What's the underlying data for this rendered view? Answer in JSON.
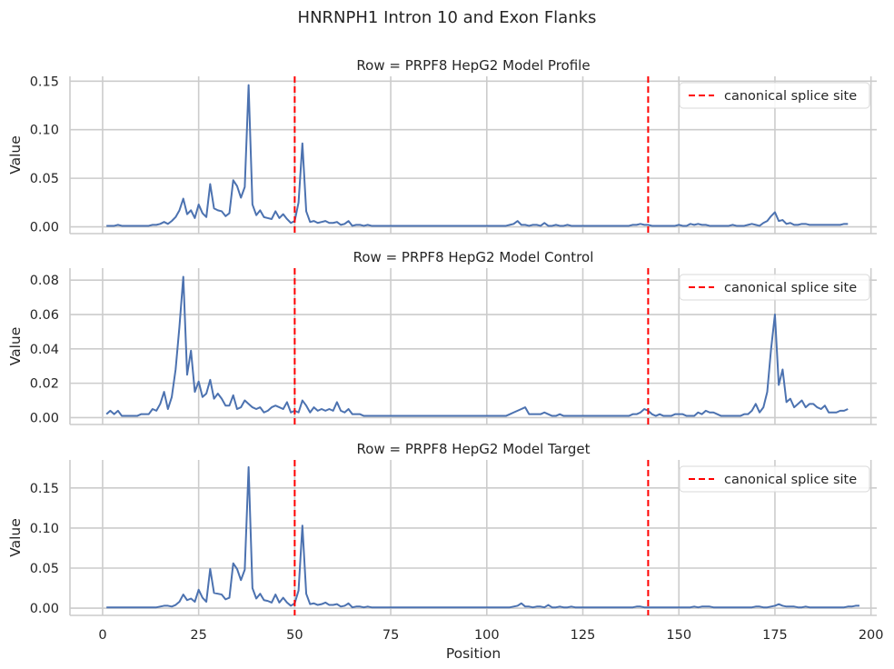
{
  "figure": {
    "suptitle": "HNRNPH1 Intron 10 and Exon Flanks",
    "xlabel": "Position",
    "ylabel": "Value"
  },
  "chart_data": [
    {
      "type": "line",
      "title": "Row = PRPF8 HepG2 Model Profile",
      "xlabel": "",
      "ylabel": "Value",
      "xlim": [
        -8.5,
        201.5
      ],
      "ylim": [
        -0.007,
        0.155
      ],
      "xticks": [
        0,
        25,
        50,
        75,
        100,
        125,
        150,
        175,
        200
      ],
      "yticks": [
        0.0,
        0.05,
        0.1,
        0.15
      ],
      "ytick_labels": [
        "0.00",
        "0.05",
        "0.10",
        "0.15"
      ],
      "grid": true,
      "legend": "top-right",
      "series": [
        {
          "color": "#4c72b0",
          "x_start": 1,
          "values": [
            0.001,
            0.001,
            0.001,
            0.002,
            0.001,
            0.001,
            0.001,
            0.001,
            0.001,
            0.001,
            0.001,
            0.001,
            0.002,
            0.002,
            0.003,
            0.005,
            0.003,
            0.006,
            0.01,
            0.017,
            0.029,
            0.013,
            0.017,
            0.009,
            0.023,
            0.014,
            0.01,
            0.044,
            0.019,
            0.017,
            0.016,
            0.011,
            0.014,
            0.048,
            0.042,
            0.03,
            0.041,
            0.146,
            0.023,
            0.012,
            0.017,
            0.01,
            0.009,
            0.008,
            0.016,
            0.009,
            0.013,
            0.008,
            0.004,
            0.006,
            0.025,
            0.086,
            0.016,
            0.005,
            0.006,
            0.004,
            0.005,
            0.006,
            0.004,
            0.004,
            0.005,
            0.002,
            0.003,
            0.006,
            0.001,
            0.002,
            0.002,
            0.001,
            0.002,
            0.001,
            0.001,
            0.001,
            0.001,
            0.001,
            0.001,
            0.001,
            0.001,
            0.001,
            0.001,
            0.001,
            0.001,
            0.001,
            0.001,
            0.001,
            0.001,
            0.001,
            0.001,
            0.001,
            0.001,
            0.001,
            0.001,
            0.001,
            0.001,
            0.001,
            0.001,
            0.001,
            0.001,
            0.001,
            0.001,
            0.001,
            0.001,
            0.001,
            0.001,
            0.001,
            0.001,
            0.002,
            0.003,
            0.006,
            0.002,
            0.002,
            0.001,
            0.002,
            0.002,
            0.001,
            0.004,
            0.001,
            0.001,
            0.002,
            0.001,
            0.001,
            0.002,
            0.001,
            0.001,
            0.001,
            0.001,
            0.001,
            0.001,
            0.001,
            0.001,
            0.001,
            0.001,
            0.001,
            0.001,
            0.001,
            0.001,
            0.001,
            0.001,
            0.002,
            0.002,
            0.003,
            0.002,
            0.002,
            0.001,
            0.001,
            0.001,
            0.001,
            0.001,
            0.001,
            0.001,
            0.002,
            0.001,
            0.001,
            0.003,
            0.002,
            0.003,
            0.002,
            0.002,
            0.001,
            0.001,
            0.001,
            0.001,
            0.001,
            0.001,
            0.002,
            0.001,
            0.001,
            0.001,
            0.002,
            0.003,
            0.002,
            0.001,
            0.004,
            0.006,
            0.011,
            0.015,
            0.006,
            0.007,
            0.003,
            0.004,
            0.002,
            0.002,
            0.003,
            0.003,
            0.002,
            0.002,
            0.002,
            0.002,
            0.002,
            0.002,
            0.002,
            0.002,
            0.002,
            0.003,
            0.003
          ]
        }
      ],
      "vlines": [
        {
          "x": 50,
          "label": "canonical splice site",
          "color": "#ff0000"
        },
        {
          "x": 142,
          "color": "#ff0000"
        }
      ]
    },
    {
      "type": "line",
      "title": "Row = PRPF8 HepG2 Model Control",
      "xlabel": "",
      "ylabel": "Value",
      "xlim": [
        -8.5,
        201.5
      ],
      "ylim": [
        -0.004,
        0.087
      ],
      "xticks": [
        0,
        25,
        50,
        75,
        100,
        125,
        150,
        175,
        200
      ],
      "yticks": [
        0.0,
        0.02,
        0.04,
        0.06,
        0.08
      ],
      "ytick_labels": [
        "0.00",
        "0.02",
        "0.04",
        "0.06",
        "0.08"
      ],
      "grid": true,
      "legend": "top-right",
      "series": [
        {
          "color": "#4c72b0",
          "x_start": 1,
          "values": [
            0.002,
            0.004,
            0.002,
            0.004,
            0.001,
            0.001,
            0.001,
            0.001,
            0.001,
            0.002,
            0.002,
            0.002,
            0.005,
            0.004,
            0.008,
            0.015,
            0.005,
            0.012,
            0.028,
            0.053,
            0.082,
            0.025,
            0.039,
            0.015,
            0.021,
            0.012,
            0.014,
            0.022,
            0.011,
            0.014,
            0.011,
            0.007,
            0.007,
            0.013,
            0.005,
            0.006,
            0.01,
            0.008,
            0.006,
            0.005,
            0.006,
            0.003,
            0.004,
            0.006,
            0.007,
            0.006,
            0.005,
            0.009,
            0.003,
            0.004,
            0.003,
            0.01,
            0.007,
            0.003,
            0.006,
            0.004,
            0.005,
            0.004,
            0.005,
            0.004,
            0.009,
            0.004,
            0.003,
            0.005,
            0.002,
            0.002,
            0.002,
            0.001,
            0.001,
            0.001,
            0.001,
            0.001,
            0.001,
            0.001,
            0.001,
            0.001,
            0.001,
            0.001,
            0.001,
            0.001,
            0.001,
            0.001,
            0.001,
            0.001,
            0.001,
            0.001,
            0.001,
            0.001,
            0.001,
            0.001,
            0.001,
            0.001,
            0.001,
            0.001,
            0.001,
            0.001,
            0.001,
            0.001,
            0.001,
            0.001,
            0.001,
            0.001,
            0.001,
            0.001,
            0.001,
            0.002,
            0.003,
            0.004,
            0.005,
            0.006,
            0.002,
            0.002,
            0.002,
            0.002,
            0.003,
            0.002,
            0.001,
            0.001,
            0.002,
            0.001,
            0.001,
            0.001,
            0.001,
            0.001,
            0.001,
            0.001,
            0.001,
            0.001,
            0.001,
            0.001,
            0.001,
            0.001,
            0.001,
            0.001,
            0.001,
            0.001,
            0.001,
            0.002,
            0.002,
            0.003,
            0.005,
            0.004,
            0.002,
            0.001,
            0.002,
            0.001,
            0.001,
            0.001,
            0.002,
            0.002,
            0.002,
            0.001,
            0.001,
            0.001,
            0.003,
            0.002,
            0.004,
            0.003,
            0.003,
            0.002,
            0.001,
            0.001,
            0.001,
            0.001,
            0.001,
            0.001,
            0.002,
            0.002,
            0.004,
            0.008,
            0.003,
            0.006,
            0.015,
            0.04,
            0.06,
            0.019,
            0.028,
            0.009,
            0.011,
            0.006,
            0.008,
            0.01,
            0.006,
            0.008,
            0.008,
            0.006,
            0.005,
            0.007,
            0.003,
            0.003,
            0.003,
            0.004,
            0.004,
            0.005
          ]
        }
      ],
      "vlines": [
        {
          "x": 50,
          "label": "canonical splice site",
          "color": "#ff0000"
        },
        {
          "x": 142,
          "color": "#ff0000"
        }
      ]
    },
    {
      "type": "line",
      "title": "Row = PRPF8 HepG2 Model Target",
      "xlabel": "Position",
      "ylabel": "Value",
      "xlim": [
        -8.5,
        201.5
      ],
      "ylim": [
        -0.009,
        0.185
      ],
      "xticks": [
        0,
        25,
        50,
        75,
        100,
        125,
        150,
        175,
        200
      ],
      "yticks": [
        0.0,
        0.05,
        0.1,
        0.15
      ],
      "ytick_labels": [
        "0.00",
        "0.05",
        "0.10",
        "0.15"
      ],
      "grid": true,
      "legend": "top-right",
      "series": [
        {
          "color": "#4c72b0",
          "x_start": 1,
          "values": [
            0.001,
            0.001,
            0.001,
            0.001,
            0.001,
            0.001,
            0.001,
            0.001,
            0.001,
            0.001,
            0.001,
            0.001,
            0.001,
            0.001,
            0.002,
            0.003,
            0.003,
            0.002,
            0.004,
            0.008,
            0.017,
            0.01,
            0.012,
            0.008,
            0.023,
            0.013,
            0.008,
            0.049,
            0.019,
            0.018,
            0.017,
            0.011,
            0.013,
            0.056,
            0.049,
            0.035,
            0.048,
            0.176,
            0.025,
            0.012,
            0.018,
            0.01,
            0.009,
            0.007,
            0.017,
            0.007,
            0.013,
            0.007,
            0.003,
            0.006,
            0.022,
            0.103,
            0.018,
            0.005,
            0.006,
            0.004,
            0.005,
            0.007,
            0.004,
            0.004,
            0.005,
            0.002,
            0.003,
            0.006,
            0.001,
            0.002,
            0.002,
            0.001,
            0.002,
            0.001,
            0.001,
            0.001,
            0.001,
            0.001,
            0.001,
            0.001,
            0.001,
            0.001,
            0.001,
            0.001,
            0.001,
            0.001,
            0.001,
            0.001,
            0.001,
            0.001,
            0.001,
            0.001,
            0.001,
            0.001,
            0.001,
            0.001,
            0.001,
            0.001,
            0.001,
            0.001,
            0.001,
            0.001,
            0.001,
            0.001,
            0.001,
            0.001,
            0.001,
            0.001,
            0.001,
            0.001,
            0.002,
            0.003,
            0.006,
            0.002,
            0.002,
            0.001,
            0.002,
            0.002,
            0.001,
            0.004,
            0.001,
            0.001,
            0.002,
            0.001,
            0.001,
            0.002,
            0.001,
            0.001,
            0.001,
            0.001,
            0.001,
            0.001,
            0.001,
            0.001,
            0.001,
            0.001,
            0.001,
            0.001,
            0.001,
            0.001,
            0.001,
            0.001,
            0.002,
            0.002,
            0.001,
            0.001,
            0.001,
            0.001,
            0.001,
            0.001,
            0.001,
            0.001,
            0.001,
            0.001,
            0.001,
            0.001,
            0.001,
            0.002,
            0.001,
            0.002,
            0.002,
            0.002,
            0.001,
            0.001,
            0.001,
            0.001,
            0.001,
            0.001,
            0.001,
            0.001,
            0.001,
            0.001,
            0.001,
            0.002,
            0.002,
            0.001,
            0.001,
            0.002,
            0.003,
            0.005,
            0.003,
            0.002,
            0.002,
            0.002,
            0.001,
            0.001,
            0.002,
            0.001,
            0.001,
            0.001,
            0.001,
            0.001,
            0.001,
            0.001,
            0.001,
            0.001,
            0.001,
            0.002,
            0.002,
            0.003,
            0.003
          ]
        }
      ],
      "vlines": [
        {
          "x": 50,
          "label": "canonical splice site",
          "color": "#ff0000"
        },
        {
          "x": 142,
          "color": "#ff0000"
        }
      ]
    }
  ]
}
